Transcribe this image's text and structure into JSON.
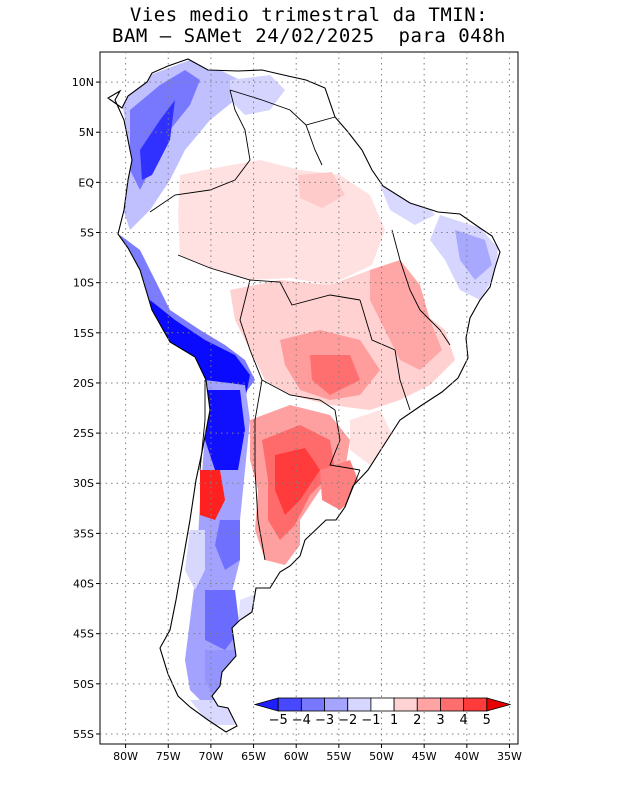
{
  "title": {
    "line1": "Vies medio trimestral da TMIN:",
    "line2": "BAM – SAMet 24/02/2025  para 048h"
  },
  "map": {
    "lon_range": [
      -83,
      -34
    ],
    "lat_range": [
      -56,
      13
    ],
    "grid_dotted": true,
    "region": "South America",
    "lat_ticks": [
      {
        "value": 10,
        "label": "10N"
      },
      {
        "value": 5,
        "label": "5N"
      },
      {
        "value": 0,
        "label": "EQ"
      },
      {
        "value": -5,
        "label": "5S"
      },
      {
        "value": -10,
        "label": "10S"
      },
      {
        "value": -15,
        "label": "15S"
      },
      {
        "value": -20,
        "label": "20S"
      },
      {
        "value": -25,
        "label": "25S"
      },
      {
        "value": -30,
        "label": "30S"
      },
      {
        "value": -35,
        "label": "35S"
      },
      {
        "value": -40,
        "label": "40S"
      },
      {
        "value": -45,
        "label": "45S"
      },
      {
        "value": -50,
        "label": "50S"
      },
      {
        "value": -55,
        "label": "55S"
      }
    ],
    "lon_ticks": [
      {
        "value": -80,
        "label": "80W"
      },
      {
        "value": -75,
        "label": "75W"
      },
      {
        "value": -70,
        "label": "70W"
      },
      {
        "value": -65,
        "label": "65W"
      },
      {
        "value": -60,
        "label": "60W"
      },
      {
        "value": -55,
        "label": "55W"
      },
      {
        "value": -50,
        "label": "50W"
      },
      {
        "value": -45,
        "label": "45W"
      },
      {
        "value": -40,
        "label": "40W"
      },
      {
        "value": -35,
        "label": "35W"
      }
    ]
  },
  "colorbar": {
    "placement": "inside-bottom-right",
    "labels": [
      "−5",
      "−4",
      "−3",
      "−2",
      "−1",
      "1",
      "2",
      "3",
      "4",
      "5"
    ],
    "colors": [
      "#1f1fff",
      "#4848ff",
      "#7878ff",
      "#a5a5ff",
      "#d6d6ff",
      "#ffffff",
      "#ffd3d3",
      "#ffa3a3",
      "#ff6e6e",
      "#ff3b3b",
      "#e60000"
    ]
  }
}
